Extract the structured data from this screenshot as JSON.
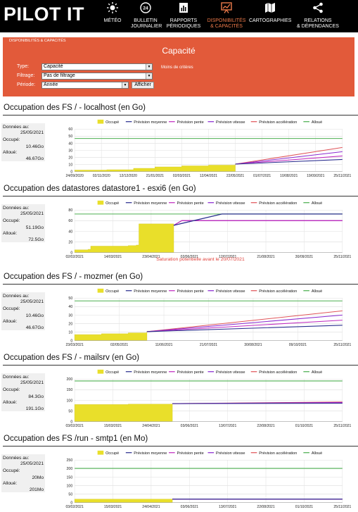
{
  "app": {
    "brand": "PILOT IT"
  },
  "nav": [
    {
      "label1": "MÉTÉO",
      "label2": "",
      "icon": "sun-icon"
    },
    {
      "label1": "BULLETIN",
      "label2": "JOURNALIER",
      "icon": "clock-24h-icon"
    },
    {
      "label1": "RAPPORTS",
      "label2": "PÉRIODIQUES",
      "icon": "report-icon"
    },
    {
      "label1": "DISPONIBILITÉS",
      "label2": "& CAPACITÉS",
      "icon": "chart-board-icon",
      "active": true
    },
    {
      "label1": "CARTOGRAPHIES",
      "label2": "",
      "icon": "map-icon"
    },
    {
      "label1": "RELATIONS",
      "label2": "& DÉPENDANCES",
      "icon": "share-icon"
    }
  ],
  "panel": {
    "breadcrumb": "DISPONIBILITÉS & CAPACITÉS",
    "title": "Capacité",
    "type_label": "Type:",
    "type_value": "Capacité",
    "filter_label": "Filtrage:",
    "filter_value": "Pas de filtrage",
    "period_label": "Période:",
    "period_value": "Année",
    "button": "Afficher",
    "hint": "Moins de critères"
  },
  "legend": [
    "Occupé",
    "Prévision moyenne",
    "Prévision pente",
    "Prévision vitesse",
    "Prévision accélération",
    "Alloué"
  ],
  "colors": {
    "occupe": "#e9df2a",
    "moyenne": "#2b2f8f",
    "pente": "#c02cc0",
    "vitesse": "#8a2ad0",
    "acceleration": "#e0555a",
    "alloue": "#4caf50",
    "accent": "#e25a3a"
  },
  "sections": [
    {
      "title": "Occupation des FS / - localhost (en Go)",
      "info": {
        "date_label": "Données au:",
        "date": "25/05/2021",
        "used_label": "Occupé:",
        "used": "10.46Go",
        "alloc_label": "Alloué:",
        "alloc": "46.67Go"
      },
      "warning": "",
      "chart_data": {
        "type": "area",
        "ylim": [
          0,
          60
        ],
        "yticks": [
          0,
          10,
          20,
          30,
          40,
          50,
          60
        ],
        "xticks": [
          "24/09/2020",
          "02/11/2020",
          "12/12/2020",
          "21/01/2021",
          "02/03/2021",
          "12/04/2021",
          "22/05/2021",
          "01/07/2021",
          "10/08/2021",
          "19/09/2021",
          "25/11/2021"
        ],
        "occupe": [
          [
            0,
            2
          ],
          [
            0.12,
            2.5
          ],
          [
            0.22,
            4.5
          ],
          [
            0.3,
            6.5
          ],
          [
            0.4,
            8
          ],
          [
            0.5,
            9
          ],
          [
            0.6,
            10.46
          ]
        ],
        "alloue": 46.67,
        "forecast_end": {
          "moyenne": 17,
          "pente": 22,
          "vitesse": 28,
          "acceleration": 34
        }
      }
    },
    {
      "title": "Occupation des datastores datastore1 - esxi6 (en Go)",
      "info": {
        "date_label": "Données au:",
        "date": "25/05/2021",
        "used_label": "Occupé:",
        "used": "51.19Go",
        "alloc_label": "Alloué:",
        "alloc": "72.5Go"
      },
      "warning": "Saturation potentielle avant le 20/07/2021",
      "chart_data": {
        "type": "area",
        "ylim": [
          0,
          80
        ],
        "yticks": [
          0,
          20,
          40,
          60,
          80
        ],
        "xticks": [
          "02/02/2021",
          "14/03/2021",
          "23/04/2021",
          "02/06/2021",
          "12/07/2021",
          "21/08/2021",
          "30/09/2021",
          "25/11/2021"
        ],
        "occupe": [
          [
            0,
            5
          ],
          [
            0.05,
            6
          ],
          [
            0.06,
            12
          ],
          [
            0.2,
            13
          ],
          [
            0.23,
            14
          ],
          [
            0.24,
            54
          ],
          [
            0.37,
            51.19
          ]
        ],
        "alloue": 72.5,
        "forecast_end": {
          "moyenne": 72.5,
          "pente": 60,
          "vitesse": 60,
          "acceleration": 60
        },
        "saturation_at": 0.55
      }
    },
    {
      "title": "Occupation des FS / - mozmer (en Go)",
      "info": {
        "date_label": "Données au:",
        "date": "25/05/2021",
        "used_label": "Occupé:",
        "used": "10.46Go",
        "alloc_label": "Alloué:",
        "alloc": "46.67Go"
      },
      "warning": "",
      "chart_data": {
        "type": "area",
        "ylim": [
          0,
          50
        ],
        "yticks": [
          0,
          10,
          20,
          30,
          40,
          50
        ],
        "xticks": [
          "23/03/2021",
          "02/05/2021",
          "11/06/2021",
          "21/07/2021",
          "30/08/2021",
          "09/10/2021",
          "25/11/2021"
        ],
        "occupe": [
          [
            0,
            7
          ],
          [
            0.1,
            8
          ],
          [
            0.2,
            9
          ],
          [
            0.27,
            10.46
          ]
        ],
        "alloue": 46.67,
        "forecast_end": {
          "moyenne": 18,
          "pente": 24,
          "vitesse": 30,
          "acceleration": 35
        }
      }
    },
    {
      "title": "Occupation des FS / - mailsrv (en Go)",
      "info": {
        "date_label": "Données au:",
        "date": "25/05/2021",
        "used_label": "Occupé:",
        "used": "84.3Go",
        "alloc_label": "Alloué:",
        "alloc": "191.1Go"
      },
      "warning": "",
      "chart_data": {
        "type": "area",
        "ylim": [
          0,
          200
        ],
        "yticks": [
          0,
          50,
          100,
          150,
          200
        ],
        "xticks": [
          "03/02/2021",
          "15/03/2021",
          "24/04/2021",
          "03/06/2021",
          "13/07/2021",
          "22/08/2021",
          "01/10/2021",
          "25/11/2021"
        ],
        "occupe": [
          [
            0,
            80
          ],
          [
            0.2,
            82
          ],
          [
            0.365,
            84.3
          ]
        ],
        "alloue": 191.1,
        "forecast_end": {
          "moyenne": 86,
          "pente": 88,
          "vitesse": 90,
          "acceleration": 92
        }
      }
    },
    {
      "title": "Occupation des FS /run - smtp1 (en Mo)",
      "info": {
        "date_label": "Données au:",
        "date": "25/05/2021",
        "used_label": "Occupé:",
        "used": "20Mo",
        "alloc_label": "Alloué:",
        "alloc": "201Mo"
      },
      "warning": "",
      "chart_data": {
        "type": "area",
        "ylim": [
          0,
          250
        ],
        "yticks": [
          0,
          50,
          100,
          150,
          200,
          250
        ],
        "xticks": [
          "03/02/2021",
          "15/03/2021",
          "24/04/2021",
          "03/06/2021",
          "13/07/2021",
          "22/08/2021",
          "01/10/2021",
          "25/11/2021"
        ],
        "occupe": [
          [
            0,
            20
          ],
          [
            0.365,
            20
          ]
        ],
        "alloue": 201,
        "forecast_end": {
          "moyenne": 20,
          "pente": 20,
          "vitesse": 20,
          "acceleration": 20
        }
      }
    }
  ]
}
